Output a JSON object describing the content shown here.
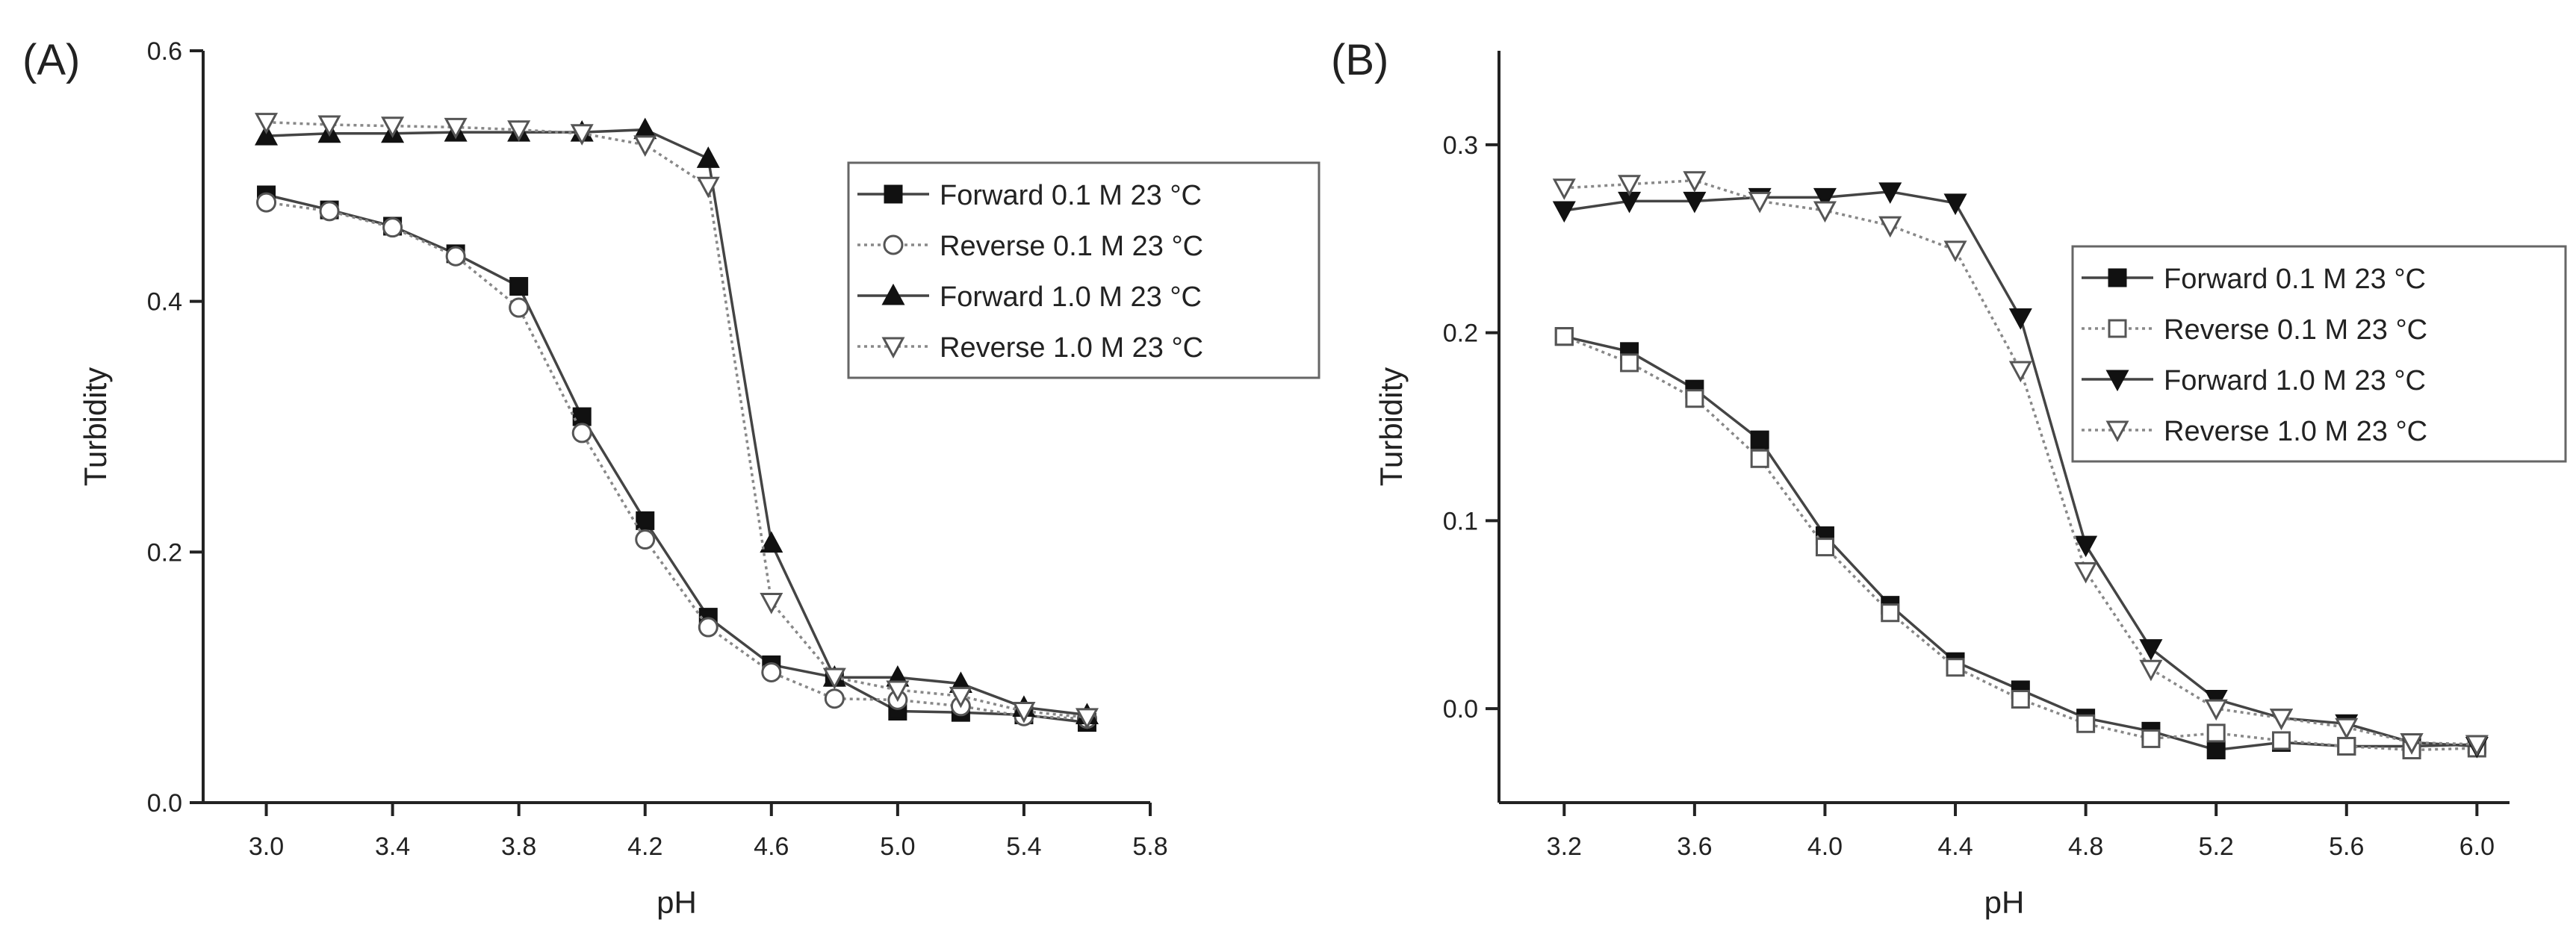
{
  "chart_data": [
    {
      "panel_label": "(A)",
      "type": "line",
      "title": "",
      "xlabel": "pH",
      "ylabel": "Turbidity",
      "xlim": [
        2.8,
        5.8
      ],
      "ylim": [
        0.0,
        0.6
      ],
      "x_ticks": [
        "3.0",
        "3.4",
        "3.8",
        "4.2",
        "4.6",
        "5.0",
        "5.4",
        "5.8"
      ],
      "y_ticks": [
        "0.0",
        "0.2",
        "0.4",
        "0.6"
      ],
      "legend_position": "right",
      "series": [
        {
          "name": "Forward 0.1 M 23 °C",
          "marker": "square-filled",
          "line": "solid",
          "x": [
            3.0,
            3.2,
            3.4,
            3.6,
            3.8,
            4.0,
            4.2,
            4.4,
            4.6,
            4.8,
            5.0,
            5.2,
            5.4,
            5.6
          ],
          "y": [
            0.485,
            0.473,
            0.46,
            0.438,
            0.412,
            0.308,
            0.225,
            0.148,
            0.11,
            0.1,
            0.073,
            0.072,
            0.07,
            0.064
          ]
        },
        {
          "name": "Reverse 0.1 M 23 °C",
          "marker": "circle-open",
          "line": "dotted",
          "x": [
            3.0,
            3.2,
            3.4,
            3.6,
            3.8,
            4.0,
            4.2,
            4.4,
            4.6,
            4.8,
            5.0,
            5.2,
            5.4,
            5.6
          ],
          "y": [
            0.479,
            0.472,
            0.459,
            0.436,
            0.395,
            0.295,
            0.21,
            0.14,
            0.104,
            0.083,
            0.082,
            0.077,
            0.069,
            0.067
          ]
        },
        {
          "name": "Forward 1.0 M 23 °C",
          "marker": "triangle-up-filled",
          "line": "solid",
          "x": [
            3.0,
            3.2,
            3.4,
            3.6,
            3.8,
            4.0,
            4.2,
            4.4,
            4.6,
            4.8,
            5.0,
            5.2,
            5.4,
            5.6
          ],
          "y": [
            0.532,
            0.534,
            0.534,
            0.535,
            0.535,
            0.535,
            0.537,
            0.514,
            0.207,
            0.1,
            0.1,
            0.095,
            0.076,
            0.07
          ]
        },
        {
          "name": "Reverse 1.0 M 23 °C",
          "marker": "triangle-down-open",
          "line": "dotted",
          "x": [
            3.0,
            3.2,
            3.4,
            3.6,
            3.8,
            4.0,
            4.2,
            4.4,
            4.6,
            4.8,
            5.0,
            5.2,
            5.4,
            5.6
          ],
          "y": [
            0.543,
            0.541,
            0.54,
            0.539,
            0.537,
            0.534,
            0.525,
            0.492,
            0.16,
            0.1,
            0.09,
            0.085,
            0.073,
            0.068
          ]
        }
      ]
    },
    {
      "panel_label": "(B)",
      "type": "line",
      "title": "",
      "xlabel": "pH",
      "ylabel": "Turbidity",
      "xlim": [
        3.0,
        6.1
      ],
      "ylim": [
        -0.05,
        0.35
      ],
      "x_ticks": [
        "3.2",
        "3.6",
        "4.0",
        "4.4",
        "4.8",
        "5.2",
        "5.6",
        "6.0"
      ],
      "y_ticks": [
        "0.0",
        "0.1",
        "0.2",
        "0.3"
      ],
      "legend_position": "right",
      "series": [
        {
          "name": "Forward 0.1 M 23 °C",
          "marker": "square-filled",
          "line": "solid",
          "x": [
            3.2,
            3.4,
            3.6,
            3.8,
            4.0,
            4.2,
            4.4,
            4.6,
            4.8,
            5.0,
            5.2,
            5.4,
            5.6,
            5.8,
            6.0
          ],
          "y": [
            0.198,
            0.19,
            0.17,
            0.143,
            0.092,
            0.055,
            0.025,
            0.01,
            -0.005,
            -0.012,
            -0.022,
            -0.018,
            -0.02,
            -0.02,
            -0.019
          ]
        },
        {
          "name": "Reverse 0.1 M 23 °C",
          "marker": "square-open",
          "line": "dotted",
          "x": [
            3.2,
            3.4,
            3.6,
            3.8,
            4.0,
            4.2,
            4.4,
            4.6,
            4.8,
            5.0,
            5.2,
            5.4,
            5.6,
            5.8,
            6.0
          ],
          "y": [
            0.198,
            0.184,
            0.165,
            0.133,
            0.086,
            0.051,
            0.022,
            0.005,
            -0.008,
            -0.016,
            -0.013,
            -0.017,
            -0.02,
            -0.022,
            -0.021
          ]
        },
        {
          "name": "Forward 1.0 M 23 °C",
          "marker": "triangle-down-filled",
          "line": "solid",
          "x": [
            3.2,
            3.4,
            3.6,
            3.8,
            4.0,
            4.2,
            4.4,
            4.6,
            4.8,
            5.0,
            5.2,
            5.4,
            5.6,
            5.8,
            6.0
          ],
          "y": [
            0.265,
            0.27,
            0.27,
            0.272,
            0.272,
            0.275,
            0.269,
            0.208,
            0.087,
            0.032,
            0.005,
            -0.005,
            -0.008,
            -0.018,
            -0.02
          ]
        },
        {
          "name": "Reverse 1.0 M 23 °C",
          "marker": "triangle-down-open",
          "line": "dotted",
          "x": [
            3.2,
            3.4,
            3.6,
            3.8,
            4.0,
            4.2,
            4.4,
            4.6,
            4.8,
            5.0,
            5.2,
            5.4,
            5.6,
            5.8,
            6.0
          ],
          "y": [
            0.277,
            0.279,
            0.281,
            0.27,
            0.265,
            0.257,
            0.244,
            0.18,
            0.073,
            0.021,
            0.0,
            -0.005,
            -0.01,
            -0.018,
            -0.019
          ]
        }
      ]
    }
  ]
}
